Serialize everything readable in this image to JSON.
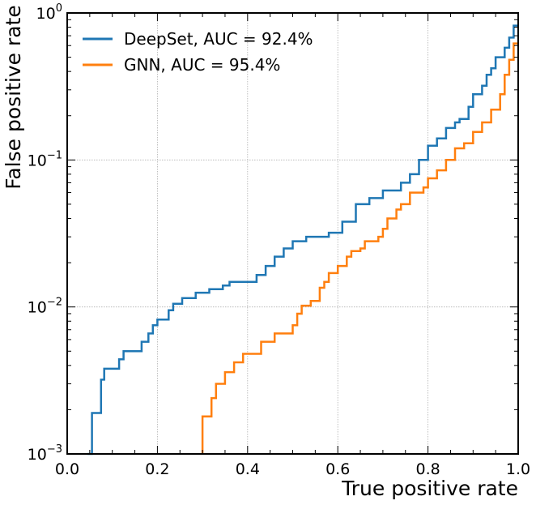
{
  "chart_data": {
    "type": "line",
    "xlabel": "True positive rate",
    "ylabel": "False positive rate",
    "xlim": [
      0.0,
      1.0
    ],
    "ylim": [
      0.001,
      1.0
    ],
    "yscale": "log",
    "grid": true,
    "legend_position": "top-left",
    "x_tick_labels": [
      "0.0",
      "0.2",
      "0.4",
      "0.6",
      "0.8",
      "1.0"
    ],
    "y_tick_labels": [
      {
        "value": 0.001,
        "base": "10",
        "exp": "−3"
      },
      {
        "value": 0.01,
        "base": "10",
        "exp": "−2"
      },
      {
        "value": 0.1,
        "base": "10",
        "exp": "−1"
      },
      {
        "value": 1.0,
        "base": "10",
        "exp": "0"
      }
    ],
    "series": [
      {
        "name": "DeepSet, AUC = 92.4%",
        "color": "#1f77b4",
        "x": [
          0.045,
          0.055,
          0.055,
          0.075,
          0.075,
          0.082,
          0.082,
          0.115,
          0.115,
          0.125,
          0.125,
          0.165,
          0.165,
          0.18,
          0.18,
          0.19,
          0.19,
          0.2,
          0.2,
          0.225,
          0.225,
          0.235,
          0.235,
          0.255,
          0.255,
          0.285,
          0.285,
          0.315,
          0.315,
          0.345,
          0.345,
          0.36,
          0.36,
          0.42,
          0.42,
          0.44,
          0.44,
          0.46,
          0.46,
          0.48,
          0.48,
          0.5,
          0.5,
          0.53,
          0.53,
          0.58,
          0.58,
          0.61,
          0.61,
          0.64,
          0.64,
          0.67,
          0.67,
          0.7,
          0.7,
          0.74,
          0.74,
          0.76,
          0.76,
          0.78,
          0.78,
          0.8,
          0.8,
          0.82,
          0.82,
          0.84,
          0.84,
          0.86,
          0.86,
          0.87,
          0.87,
          0.89,
          0.89,
          0.9,
          0.9,
          0.92,
          0.92,
          0.93,
          0.93,
          0.94,
          0.94,
          0.95,
          0.95,
          0.97,
          0.97,
          0.98,
          0.98,
          0.99,
          0.99,
          1.0
        ],
        "y": [
          0.001,
          0.001,
          0.0019,
          0.0019,
          0.0032,
          0.0032,
          0.0038,
          0.0038,
          0.0044,
          0.0044,
          0.005,
          0.005,
          0.0058,
          0.0058,
          0.0066,
          0.0066,
          0.0075,
          0.0075,
          0.0082,
          0.0082,
          0.0095,
          0.0095,
          0.0105,
          0.0105,
          0.0115,
          0.0115,
          0.0125,
          0.0125,
          0.0132,
          0.0132,
          0.014,
          0.014,
          0.0148,
          0.0148,
          0.0165,
          0.0165,
          0.019,
          0.019,
          0.022,
          0.022,
          0.025,
          0.025,
          0.028,
          0.028,
          0.03,
          0.03,
          0.032,
          0.032,
          0.038,
          0.038,
          0.05,
          0.05,
          0.055,
          0.055,
          0.062,
          0.062,
          0.07,
          0.07,
          0.08,
          0.08,
          0.1,
          0.1,
          0.125,
          0.125,
          0.14,
          0.14,
          0.165,
          0.165,
          0.18,
          0.18,
          0.19,
          0.19,
          0.23,
          0.23,
          0.28,
          0.28,
          0.32,
          0.32,
          0.38,
          0.38,
          0.42,
          0.42,
          0.5,
          0.5,
          0.58,
          0.58,
          0.68,
          0.68,
          0.82,
          0.82
        ]
      },
      {
        "name": "GNN, AUC = 95.4%",
        "color": "#ff7f0e",
        "x": [
          0.3,
          0.3,
          0.32,
          0.32,
          0.33,
          0.33,
          0.35,
          0.35,
          0.37,
          0.37,
          0.39,
          0.39,
          0.43,
          0.43,
          0.46,
          0.46,
          0.5,
          0.5,
          0.51,
          0.51,
          0.52,
          0.52,
          0.54,
          0.54,
          0.56,
          0.56,
          0.57,
          0.57,
          0.58,
          0.58,
          0.6,
          0.6,
          0.62,
          0.62,
          0.63,
          0.63,
          0.65,
          0.65,
          0.66,
          0.66,
          0.69,
          0.69,
          0.7,
          0.7,
          0.71,
          0.71,
          0.73,
          0.73,
          0.74,
          0.74,
          0.76,
          0.76,
          0.79,
          0.79,
          0.8,
          0.8,
          0.82,
          0.82,
          0.84,
          0.84,
          0.86,
          0.86,
          0.88,
          0.88,
          0.9,
          0.9,
          0.92,
          0.92,
          0.94,
          0.94,
          0.96,
          0.96,
          0.97,
          0.97,
          0.98,
          0.98,
          0.99,
          0.99,
          1.0
        ],
        "y": [
          0.001,
          0.0018,
          0.0018,
          0.0024,
          0.0024,
          0.003,
          0.003,
          0.0036,
          0.0036,
          0.0042,
          0.0042,
          0.0048,
          0.0048,
          0.0058,
          0.0058,
          0.0066,
          0.0066,
          0.0075,
          0.0075,
          0.009,
          0.009,
          0.0102,
          0.0102,
          0.011,
          0.011,
          0.0135,
          0.0135,
          0.0148,
          0.0148,
          0.017,
          0.017,
          0.019,
          0.019,
          0.022,
          0.022,
          0.024,
          0.024,
          0.025,
          0.025,
          0.028,
          0.028,
          0.03,
          0.03,
          0.034,
          0.034,
          0.04,
          0.04,
          0.046,
          0.046,
          0.05,
          0.05,
          0.06,
          0.06,
          0.065,
          0.065,
          0.075,
          0.075,
          0.085,
          0.085,
          0.1,
          0.1,
          0.12,
          0.12,
          0.13,
          0.13,
          0.155,
          0.155,
          0.18,
          0.18,
          0.22,
          0.22,
          0.28,
          0.28,
          0.38,
          0.38,
          0.48,
          0.48,
          0.62,
          0.62
        ]
      }
    ]
  }
}
